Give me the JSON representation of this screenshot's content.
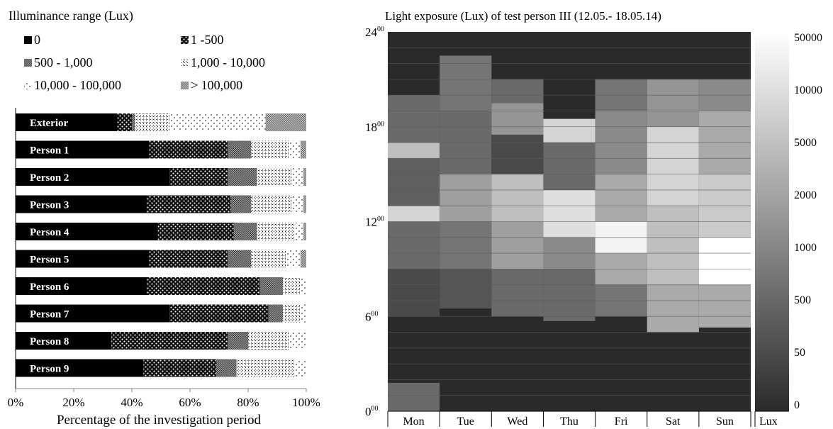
{
  "chart_data": [
    {
      "type": "bar",
      "stacked": true,
      "orientation": "horizontal",
      "legend_title": "Illuminance range (Lux)",
      "xlabel": "Percentage of the investigation period",
      "xlim": [
        0,
        100
      ],
      "x_ticks": [
        "0%",
        "20%",
        "40%",
        "60%",
        "80%",
        "100%"
      ],
      "categories": [
        "Exterior",
        "Person 1",
        "Person 2",
        "Person 3",
        "Person 4",
        "Person 5",
        "Person 6",
        "Person 7",
        "Person 8",
        "Person 9"
      ],
      "series": [
        {
          "name": "0",
          "values": [
            35,
            46,
            53,
            45,
            49,
            46,
            45,
            53,
            33,
            44
          ]
        },
        {
          "name": "1 -500",
          "values": [
            5,
            27,
            20,
            29,
            26,
            27,
            39,
            34,
            40,
            25
          ]
        },
        {
          "name": "500 - 1,000",
          "values": [
            1,
            8,
            10,
            7,
            8,
            8,
            8,
            5,
            7,
            7
          ]
        },
        {
          "name": "1,000 - 10,000",
          "values": [
            12,
            13,
            12,
            14,
            13,
            12,
            6,
            6,
            14,
            20
          ]
        },
        {
          "name": "10,000 - 100,000",
          "values": [
            33,
            4,
            4,
            4,
            3,
            5,
            2,
            2,
            6,
            4
          ]
        },
        {
          "name": "> 100,000",
          "values": [
            14,
            2,
            1,
            1,
            1,
            2,
            0,
            0,
            0,
            0
          ]
        }
      ],
      "series_colors": [
        "#000000",
        "#111111",
        "#777777",
        "#e8e8e8",
        "#f6f6f6",
        "#888888"
      ],
      "legend_placement": "top",
      "grid": false
    },
    {
      "type": "heatmap",
      "title": "Light exposure (Lux)  of test person III (12.05.- 18.05.14)",
      "x_categories": [
        "Mon",
        "Tue",
        "Wed",
        "Thu",
        "Fri",
        "Sat",
        "Sun"
      ],
      "y_range_hours": [
        0,
        24
      ],
      "y_ticks": [
        {
          "hour": "0",
          "minutes": "00"
        },
        {
          "hour": "6",
          "minutes": "00"
        },
        {
          "hour": "12",
          "minutes": "00"
        },
        {
          "hour": "18",
          "minutes": "00"
        },
        {
          "hour": "24",
          "minutes": "00"
        }
      ],
      "colorbar_ticks": [
        "0",
        "50",
        "500",
        "1000",
        "2000",
        "5000",
        "10000",
        "50000"
      ],
      "colorbar_label": "Lux",
      "colorscale": [
        "#2a2a2a",
        "#ffffff"
      ],
      "cells": [
        {
          "day": "Mon",
          "from": 0,
          "to": 1.8,
          "level": 0.3
        },
        {
          "day": "Mon",
          "from": 6,
          "to": 9,
          "level": 0.15
        },
        {
          "day": "Mon",
          "from": 9,
          "to": 12,
          "level": 0.3
        },
        {
          "day": "Mon",
          "from": 12,
          "to": 13,
          "level": 0.8
        },
        {
          "day": "Mon",
          "from": 13,
          "to": 16,
          "level": 0.25
        },
        {
          "day": "Mon",
          "from": 16,
          "to": 17,
          "level": 0.7
        },
        {
          "day": "Mon",
          "from": 17,
          "to": 20,
          "level": 0.3
        },
        {
          "day": "Tue",
          "from": 6.5,
          "to": 9,
          "level": 0.2
        },
        {
          "day": "Tue",
          "from": 9,
          "to": 12,
          "level": 0.35
        },
        {
          "day": "Tue",
          "from": 12,
          "to": 15,
          "level": 0.55
        },
        {
          "day": "Tue",
          "from": 15,
          "to": 19,
          "level": 0.3
        },
        {
          "day": "Tue",
          "from": 19,
          "to": 22.5,
          "level": 0.35
        },
        {
          "day": "Wed",
          "from": 6,
          "to": 9,
          "level": 0.3
        },
        {
          "day": "Wed",
          "from": 9,
          "to": 12,
          "level": 0.55
        },
        {
          "day": "Wed",
          "from": 12,
          "to": 15,
          "level": 0.7
        },
        {
          "day": "Wed",
          "from": 15,
          "to": 17.5,
          "level": 0.15
        },
        {
          "day": "Wed",
          "from": 17.5,
          "to": 19.5,
          "level": 0.5
        },
        {
          "day": "Wed",
          "from": 19.5,
          "to": 21,
          "level": 0.3
        },
        {
          "day": "Thu",
          "from": 5.7,
          "to": 9,
          "level": 0.3
        },
        {
          "day": "Thu",
          "from": 9,
          "to": 11,
          "level": 0.45
        },
        {
          "day": "Thu",
          "from": 11,
          "to": 14,
          "level": 0.85
        },
        {
          "day": "Thu",
          "from": 14,
          "to": 17,
          "level": 0.3
        },
        {
          "day": "Thu",
          "from": 17,
          "to": 18.5,
          "level": 0.8
        },
        {
          "day": "Fri",
          "from": 6,
          "to": 8,
          "level": 0.35
        },
        {
          "day": "Fri",
          "from": 8,
          "to": 10,
          "level": 0.6
        },
        {
          "day": "Fri",
          "from": 10,
          "to": 12,
          "level": 0.95
        },
        {
          "day": "Fri",
          "from": 12,
          "to": 15,
          "level": 0.6
        },
        {
          "day": "Fri",
          "from": 15,
          "to": 19,
          "level": 0.45
        },
        {
          "day": "Fri",
          "from": 19,
          "to": 21,
          "level": 0.35
        },
        {
          "day": "Sat",
          "from": 5,
          "to": 8,
          "level": 0.6
        },
        {
          "day": "Sat",
          "from": 8,
          "to": 13,
          "level": 0.7
        },
        {
          "day": "Sat",
          "from": 13,
          "to": 18,
          "level": 0.8
        },
        {
          "day": "Sat",
          "from": 18,
          "to": 21,
          "level": 0.5
        },
        {
          "day": "Sun",
          "from": 5.3,
          "to": 8,
          "level": 0.6
        },
        {
          "day": "Sun",
          "from": 8,
          "to": 11,
          "level": 1.0
        },
        {
          "day": "Sun",
          "from": 11,
          "to": 15,
          "level": 0.75
        },
        {
          "day": "Sun",
          "from": 15,
          "to": 19,
          "level": 0.6
        },
        {
          "day": "Sun",
          "from": 19,
          "to": 21,
          "level": 0.45
        }
      ]
    }
  ]
}
